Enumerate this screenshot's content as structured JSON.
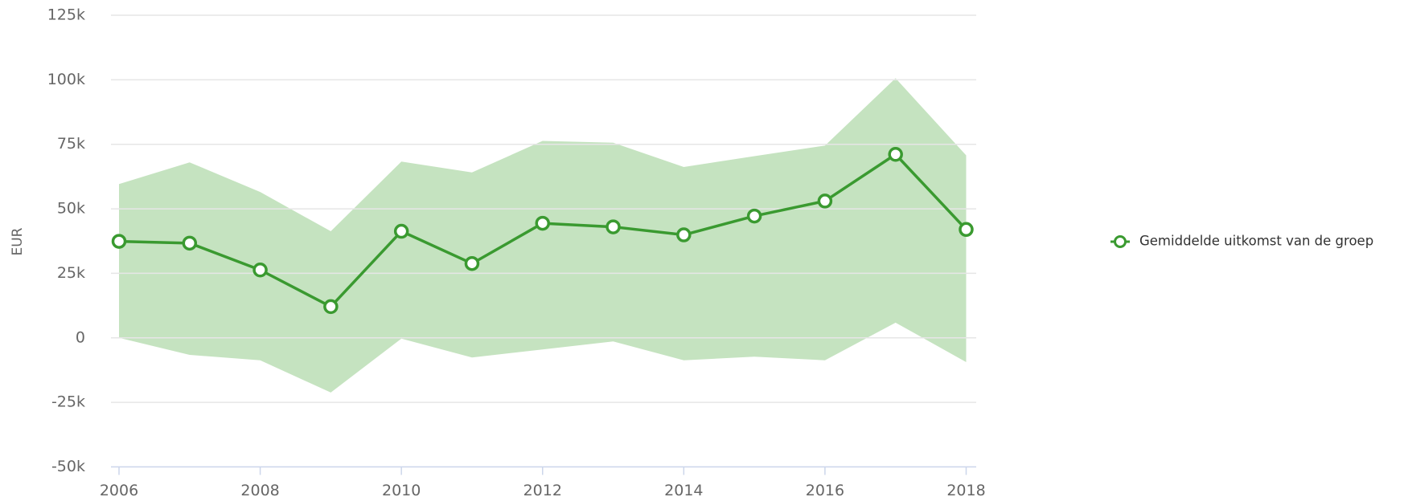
{
  "chart_data": {
    "type": "line",
    "x": [
      2006,
      2007,
      2008,
      2009,
      2010,
      2011,
      2012,
      2013,
      2014,
      2015,
      2016,
      2017,
      2018
    ],
    "series": [
      {
        "name": "Gemiddelde uitkomst van de groep",
        "color": "#3a9a30",
        "values": [
          37400,
          36700,
          26300,
          12100,
          41300,
          28800,
          44400,
          43000,
          39900,
          47200,
          53000,
          71100,
          42000
        ]
      }
    ],
    "band": {
      "color": "#c5e3c0",
      "upper": [
        59600,
        68000,
        56500,
        41300,
        68300,
        64100,
        76300,
        75600,
        66200,
        70400,
        74500,
        100600,
        70700
      ],
      "lower": [
        0,
        -6600,
        -8700,
        -21200,
        -300,
        -7600,
        -4500,
        -1400,
        -8700,
        -7300,
        -8700,
        5900,
        -9400
      ]
    },
    "ylabel": "EUR",
    "xlim": [
      2006,
      2018
    ],
    "xticks": [
      2006,
      2008,
      2010,
      2012,
      2014,
      2016,
      2018
    ],
    "ylim": [
      -50000,
      125000
    ],
    "yticks": [
      {
        "value": -50000,
        "label": "-50k"
      },
      {
        "value": -25000,
        "label": "-25k"
      },
      0,
      {
        "value": 25000,
        "label": "25k"
      },
      {
        "value": 50000,
        "label": "50k"
      },
      {
        "value": 75000,
        "label": "75k"
      },
      {
        "value": 100000,
        "label": "100k"
      },
      {
        "value": 125000,
        "label": "125k"
      }
    ],
    "grid": true,
    "legend": "right"
  }
}
